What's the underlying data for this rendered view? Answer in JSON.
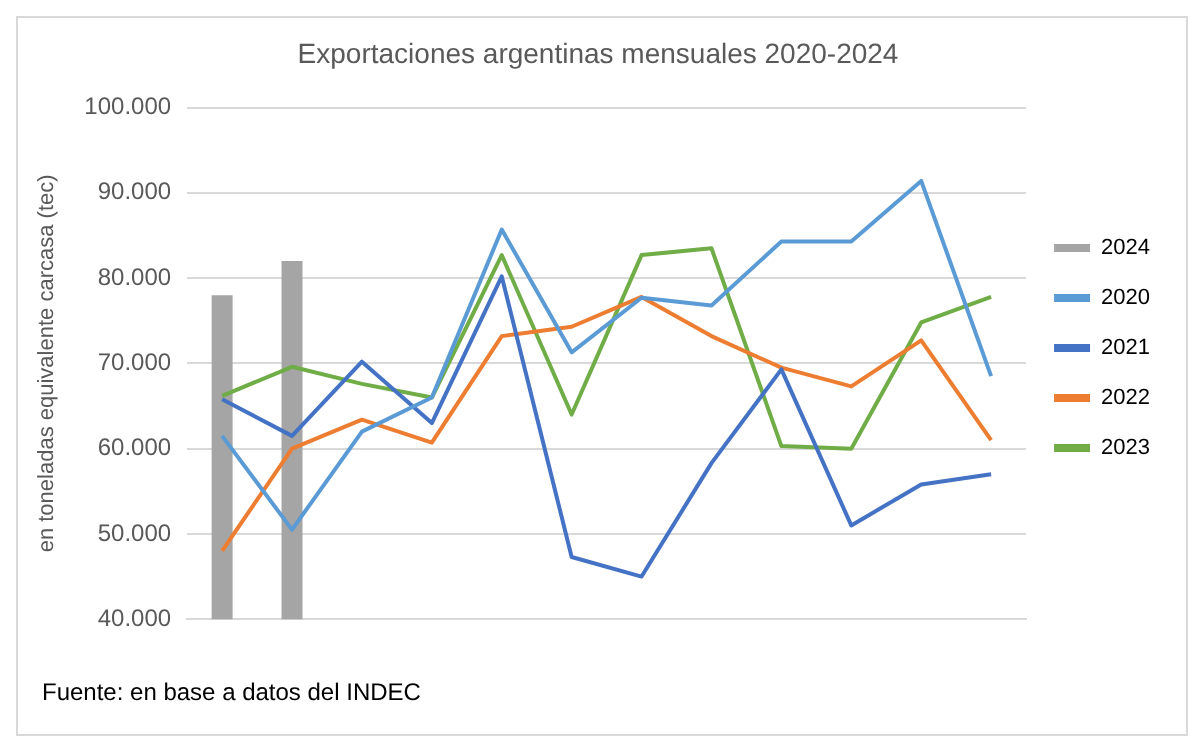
{
  "chart_data": {
    "type": "line",
    "title": "Exportaciones argentinas mensuales 2020-2024",
    "ylabel": "en toneladas equivalente carcasa (tec)",
    "annotations": [
      "Fuente: en base a datos del INDEC"
    ],
    "categories": [
      null,
      null,
      null,
      null,
      null,
      null,
      null,
      null,
      null,
      null,
      null,
      null
    ],
    "series": [
      {
        "name": "2024",
        "type": "bar",
        "color": "#a5a5a5",
        "values": [
          78000,
          82000,
          null,
          null,
          null,
          null,
          null,
          null,
          null,
          null,
          null,
          null
        ]
      },
      {
        "name": "2020",
        "color": "#5b9bd5",
        "values": [
          61500,
          50500,
          62000,
          66000,
          85700,
          71300,
          77700,
          76800,
          84300,
          84300,
          91400,
          68500
        ]
      },
      {
        "name": "2021",
        "color": "#4472c4",
        "values": [
          65800,
          61500,
          70200,
          63000,
          80200,
          47300,
          45000,
          58300,
          69300,
          51000,
          55800,
          57000
        ]
      },
      {
        "name": "2022",
        "color": "#ed7d31",
        "values": [
          48000,
          60000,
          63400,
          60700,
          73200,
          74300,
          77800,
          73200,
          69500,
          67300,
          72700,
          61000
        ]
      },
      {
        "name": "2023",
        "color": "#70ad47",
        "values": [
          66200,
          69600,
          67600,
          66000,
          82700,
          64000,
          82700,
          83500,
          60300,
          60000,
          74800,
          77800
        ]
      }
    ],
    "ylim": [
      40000,
      100000
    ],
    "yticks": [
      {
        "value": 40000,
        "label": "40.000"
      },
      {
        "value": 50000,
        "label": "50.000"
      },
      {
        "value": 60000,
        "label": "60.000"
      },
      {
        "value": 70000,
        "label": "70.000"
      },
      {
        "value": 80000,
        "label": "80.000"
      },
      {
        "value": 90000,
        "label": "90.000"
      },
      {
        "value": 100000,
        "label": "100.000"
      }
    ],
    "grid": "y",
    "legend": "right",
    "marker": "none",
    "line_style": "solid"
  }
}
